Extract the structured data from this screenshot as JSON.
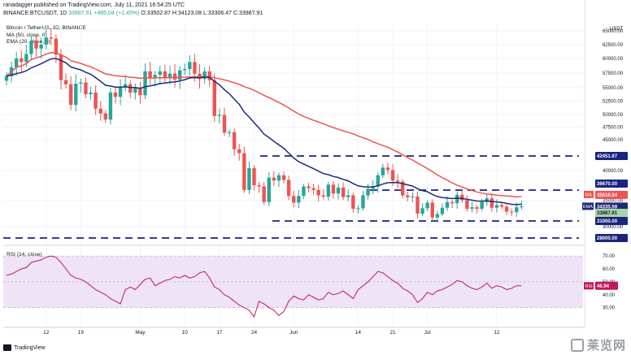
{
  "header": {
    "publish_line": "ranadagger published on TradingView.com, July 11, 2021 16:54:25 UTC",
    "symbol": "BINANCE:BTCUSDT, 1D",
    "close_value": "33987.91",
    "change": "+485.04 (+1.45%)",
    "open": "O:33502.87",
    "high": "H:34123.08",
    "low": "L:33306.47",
    "close": "C:33987.91"
  },
  "indicators": {
    "title": "Bitcoin / TetherUS, 1D, BINANCE",
    "ma_label": "MA (50, close, 0)",
    "ema_label": "EMA (20, close, 0)",
    "rsi_label": "RSI (14, close)"
  },
  "colors": {
    "up": "#26a69a",
    "down": "#ef5350",
    "ma": "#ef5350",
    "ema": "#1e2a78",
    "level": "#1a237e",
    "rsi": "#c2185b",
    "rsi_band": "#efe3f7",
    "price_tag": "#a5d6a7"
  },
  "footer": {
    "brand": "TradingView",
    "watermark": "莱览网"
  },
  "chart_data": [
    {
      "type": "candlestick",
      "currency_label": "USDT",
      "x_ticks": [
        "12",
        "19",
        "May",
        "10",
        "17",
        "24",
        "Jun",
        "14",
        "21",
        "Jul",
        "12"
      ],
      "y_ticks": [
        30000,
        35000,
        40000,
        45000,
        47500,
        50000,
        52500,
        55000,
        57500,
        60000,
        62500,
        65000
      ],
      "ylim": [
        27000,
        66500
      ],
      "horizontal_levels": [
        42451.67,
        36670,
        31000,
        28000
      ],
      "price_labels": [
        {
          "label": "42451.67",
          "value": 42451.67
        },
        {
          "label": "36670.00",
          "value": 36670.0
        },
        {
          "label": "MA",
          "value": 35616.84
        },
        {
          "label": "EMA",
          "value": 34335.59
        },
        {
          "label": "33987.91",
          "value": 33987.91
        },
        {
          "label": "31000.00",
          "value": 31000.0
        },
        {
          "label": "28000.00",
          "value": 28000.0
        }
      ],
      "ma_value_label": "35616.84",
      "ema_value_label": "34335.59",
      "countdown_label": "07:05:40",
      "closes": [
        57000,
        58500,
        60000,
        59400,
        60800,
        63200,
        61800,
        62500,
        63800,
        63600,
        60700,
        56300,
        55600,
        51800,
        55700,
        55900,
        53800,
        54100,
        51100,
        50200,
        49000,
        54100,
        53300,
        55100,
        55600,
        54100,
        54900,
        53600,
        57800,
        56600,
        57200,
        57800,
        56600,
        57400,
        56400,
        58000,
        58200,
        59400,
        57400,
        56500,
        57800,
        56300,
        49700,
        49900,
        46400,
        46500,
        43500,
        42900,
        36700,
        40400,
        37500,
        37300,
        34700,
        38800,
        38300,
        39200,
        38400,
        35700,
        34600,
        35700,
        37300,
        37000,
        36700,
        35800,
        35600,
        37600,
        36100,
        37100,
        35500,
        35800,
        33500,
        33600,
        35800,
        36900,
        37300,
        39200,
        40500,
        40100,
        38300,
        38100,
        35800,
        35500,
        35600,
        32500,
        33600,
        34600,
        31700,
        32400,
        33700,
        34700,
        34500,
        35900,
        35000,
        33500,
        33800,
        33500,
        34700,
        35300,
        33700,
        34200,
        33900,
        32900,
        32800,
        33800,
        33987
      ],
      "ma50_last": 35616.84,
      "ema20_last": 34335.59,
      "last_close": 33987.91
    },
    {
      "type": "line",
      "name": "RSI (14, close)",
      "y_ticks": [
        30,
        40,
        50,
        60,
        70
      ],
      "ylim": [
        16,
        77
      ],
      "band": [
        30,
        70
      ],
      "last_label": "46.94",
      "values": [
        55,
        56,
        58,
        60,
        61,
        65,
        66,
        67,
        69,
        70,
        69,
        65,
        60,
        55,
        53,
        52,
        50,
        47,
        44,
        42,
        40,
        37,
        35,
        33,
        44,
        46,
        44,
        48,
        52,
        53,
        47,
        49,
        51,
        52,
        54,
        53,
        55,
        53,
        54,
        57,
        58,
        53,
        46,
        44,
        40,
        38,
        35,
        32,
        30,
        28,
        23,
        35,
        33,
        30,
        28,
        24,
        27,
        35,
        39,
        37,
        36,
        40,
        38,
        36,
        37,
        42,
        40,
        41,
        43,
        40,
        37,
        44,
        47,
        50,
        54,
        58,
        57,
        54,
        51,
        49,
        45,
        43,
        40,
        34,
        37,
        42,
        40,
        43,
        44,
        46,
        48,
        51,
        50,
        47,
        45,
        44,
        46,
        49,
        45,
        47,
        46,
        44,
        45,
        47,
        46.94
      ]
    }
  ]
}
